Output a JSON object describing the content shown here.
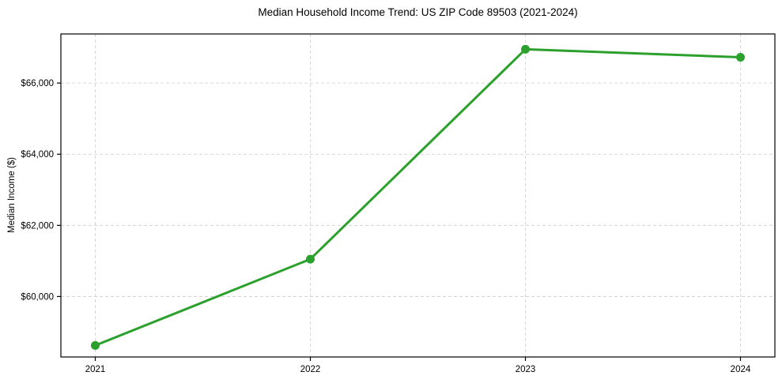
{
  "chart_data": {
    "type": "line",
    "title": "Median Household Income Trend: US ZIP Code 89503 (2021-2024)",
    "xlabel": "",
    "ylabel": "Median Income ($)",
    "x": [
      2021,
      2022,
      2023,
      2024
    ],
    "series": [
      {
        "name": "Median Household Income",
        "values": [
          58625,
          61050,
          66950,
          66725
        ],
        "color": "#2ca02c",
        "marker": "circle",
        "marker_radius": 5.5,
        "line_width": 3
      }
    ],
    "xticks": [
      2021,
      2022,
      2023,
      2024
    ],
    "xtick_labels": [
      "2021",
      "2022",
      "2023",
      "2024"
    ],
    "yticks": [
      60000,
      62000,
      64000,
      66000
    ],
    "ytick_labels": [
      "$60,000",
      "$62,000",
      "$64,000",
      "$66,000"
    ],
    "xlim": [
      2020.84,
      2024.16
    ],
    "ylim": [
      58300,
      67380
    ],
    "grid": true,
    "grid_style": "dashed",
    "grid_color": "#cccccc",
    "spine_color": "#000000",
    "background": "#ffffff",
    "legend": "none"
  }
}
